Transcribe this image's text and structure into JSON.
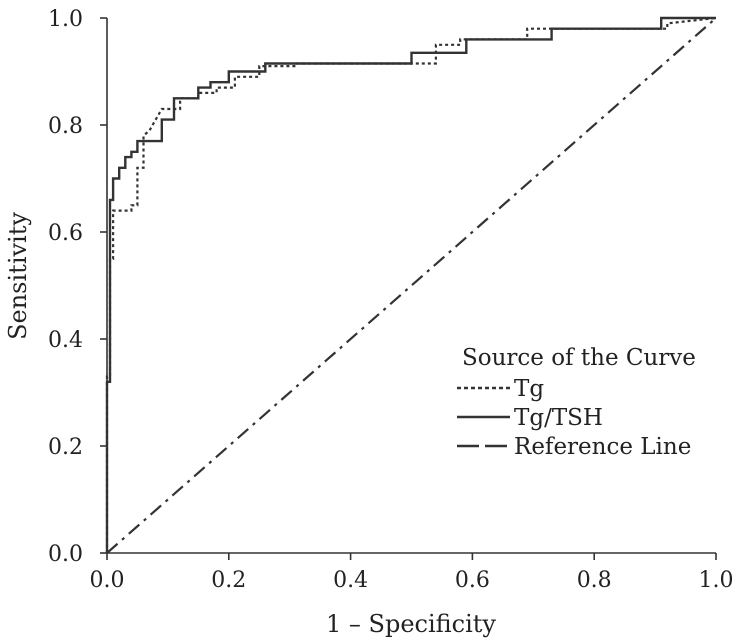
{
  "chart_data": {
    "type": "line",
    "title": "",
    "xlabel": "1 – Specificity",
    "ylabel": "Sensitivity",
    "xlim": [
      0,
      1
    ],
    "ylim": [
      0,
      1
    ],
    "x_ticks": [
      "0.0",
      "0.2",
      "0.4",
      "0.6",
      "0.8",
      "1.0"
    ],
    "y_ticks": [
      "0.0",
      "0.2",
      "0.4",
      "0.6",
      "0.8",
      "1.0"
    ],
    "grid": false,
    "legend": {
      "title": "Source of the Curve",
      "position": "lower-right"
    },
    "series": [
      {
        "name": "Tg",
        "style": "dotted",
        "color": "#333333",
        "x": [
          0,
          0,
          0.005,
          0.005,
          0.01,
          0.01,
          0.02,
          0.04,
          0.04,
          0.05,
          0.05,
          0.06,
          0.06,
          0.07,
          0.08,
          0.09,
          0.1,
          0.12,
          0.12,
          0.15,
          0.15,
          0.18,
          0.18,
          0.21,
          0.21,
          0.25,
          0.25,
          0.31,
          0.31,
          0.54,
          0.54,
          0.58,
          0.58,
          0.69,
          0.69,
          0.92,
          0.92,
          1.0
        ],
        "y": [
          0,
          0.33,
          0.33,
          0.55,
          0.55,
          0.64,
          0.64,
          0.64,
          0.65,
          0.65,
          0.72,
          0.72,
          0.78,
          0.79,
          0.81,
          0.83,
          0.83,
          0.83,
          0.85,
          0.85,
          0.86,
          0.86,
          0.87,
          0.87,
          0.89,
          0.89,
          0.91,
          0.91,
          0.915,
          0.915,
          0.95,
          0.95,
          0.96,
          0.96,
          0.98,
          0.98,
          0.99,
          1.0
        ]
      },
      {
        "name": "Tg/TSH",
        "style": "solid",
        "color": "#333333",
        "x": [
          0,
          0,
          0.005,
          0.005,
          0.01,
          0.01,
          0.02,
          0.02,
          0.03,
          0.03,
          0.04,
          0.04,
          0.05,
          0.05,
          0.09,
          0.09,
          0.11,
          0.11,
          0.15,
          0.15,
          0.17,
          0.17,
          0.2,
          0.2,
          0.26,
          0.26,
          0.5,
          0.5,
          0.59,
          0.59,
          0.73,
          0.73,
          0.91,
          0.91,
          1.0
        ],
        "y": [
          0,
          0.32,
          0.32,
          0.66,
          0.66,
          0.7,
          0.7,
          0.72,
          0.72,
          0.74,
          0.74,
          0.75,
          0.75,
          0.77,
          0.77,
          0.81,
          0.81,
          0.85,
          0.85,
          0.87,
          0.87,
          0.88,
          0.88,
          0.9,
          0.9,
          0.915,
          0.915,
          0.935,
          0.935,
          0.96,
          0.96,
          0.98,
          0.98,
          1.0,
          1.0
        ]
      },
      {
        "name": "Reference Line",
        "style": "dashdot",
        "color": "#333333",
        "x": [
          0,
          1
        ],
        "y": [
          0,
          1
        ]
      }
    ]
  }
}
